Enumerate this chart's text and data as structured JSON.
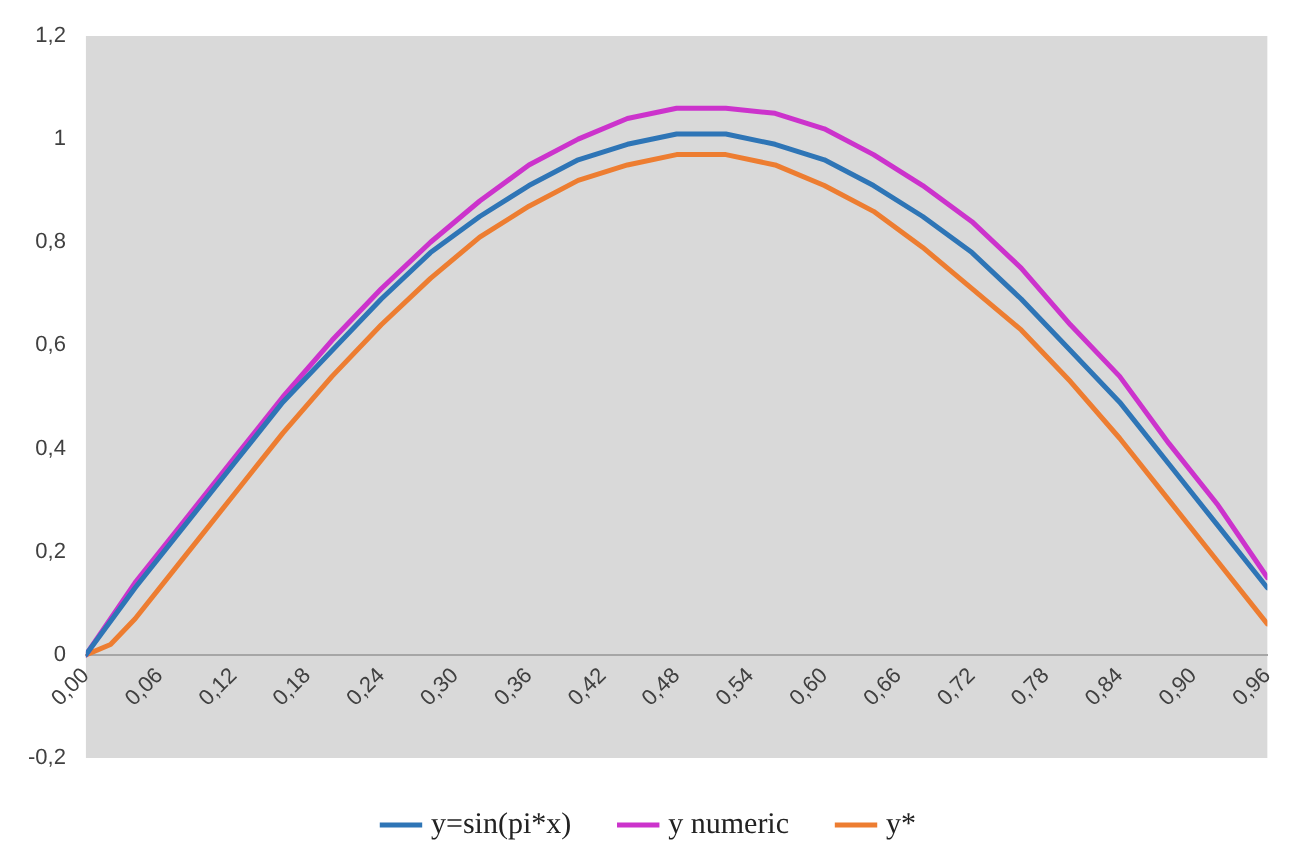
{
  "chart_data": {
    "type": "line",
    "x": [
      0,
      0.04,
      0.08,
      0.12,
      0.16,
      0.2,
      0.24,
      0.28,
      0.32,
      0.36,
      0.4,
      0.44,
      0.48,
      0.52,
      0.56,
      0.6,
      0.64,
      0.68,
      0.72,
      0.76,
      0.8,
      0.84,
      0.88,
      0.92,
      0.96
    ],
    "xlim": [
      0,
      0.96
    ],
    "xticks": [
      {
        "value": 0,
        "label": "0,00"
      },
      {
        "value": 0.06,
        "label": "0,06"
      },
      {
        "value": 0.12,
        "label": "0,12"
      },
      {
        "value": 0.18,
        "label": "0,18"
      },
      {
        "value": 0.24,
        "label": "0,24"
      },
      {
        "value": 0.3,
        "label": "0,30"
      },
      {
        "value": 0.36,
        "label": "0,36"
      },
      {
        "value": 0.42,
        "label": "0,42"
      },
      {
        "value": 0.48,
        "label": "0,48"
      },
      {
        "value": 0.54,
        "label": "0,54"
      },
      {
        "value": 0.6,
        "label": "0,60"
      },
      {
        "value": 0.66,
        "label": "0,66"
      },
      {
        "value": 0.72,
        "label": "0,72"
      },
      {
        "value": 0.78,
        "label": "0,78"
      },
      {
        "value": 0.84,
        "label": "0,84"
      },
      {
        "value": 0.9,
        "label": "0,90"
      },
      {
        "value": 0.96,
        "label": "0,96"
      }
    ],
    "ylim": [
      -0.2,
      1.2
    ],
    "yticks": [
      {
        "value": -0.2,
        "label": "-0,2"
      },
      0,
      {
        "value": 0.2,
        "label": "0,2"
      },
      {
        "value": 0.4,
        "label": "0,4"
      },
      {
        "value": 0.6,
        "label": "0,6"
      },
      {
        "value": 0.8,
        "label": "0,8"
      },
      1,
      {
        "value": 1.2,
        "label": "1,2"
      }
    ],
    "grid": false,
    "legend": "bottom",
    "marker": "none",
    "line_style": "solid",
    "series": [
      {
        "name": "y=sin(pi*x)",
        "color": "#2e75b6",
        "values": [
          0,
          0.13,
          0.25,
          0.37,
          0.49,
          0.59,
          0.69,
          0.78,
          0.85,
          0.91,
          0.96,
          0.99,
          1.01,
          1.01,
          0.99,
          0.96,
          0.91,
          0.85,
          0.78,
          0.69,
          0.59,
          0.49,
          0.37,
          0.25,
          0.13
        ]
      },
      {
        "name": "y numeric",
        "color": "#cc33cc",
        "values": [
          0,
          0.14,
          0.26,
          0.38,
          0.5,
          0.61,
          0.71,
          0.8,
          0.88,
          0.95,
          1.0,
          1.04,
          1.06,
          1.06,
          1.05,
          1.02,
          0.97,
          0.91,
          0.84,
          0.75,
          0.64,
          0.54,
          0.41,
          0.29,
          0.15
        ]
      },
      {
        "name": "y*",
        "color": "#ed7d31",
        "x": [
          0,
          0.02,
          0.04,
          0.08,
          0.12,
          0.16,
          0.2,
          0.24,
          0.28,
          0.32,
          0.36,
          0.4,
          0.44,
          0.48,
          0.52,
          0.56,
          0.6,
          0.64,
          0.68,
          0.72,
          0.76,
          0.8,
          0.84,
          0.88,
          0.92,
          0.96
        ],
        "values": [
          0,
          0.02,
          0.07,
          0.19,
          0.31,
          0.43,
          0.54,
          0.64,
          0.73,
          0.81,
          0.87,
          0.92,
          0.95,
          0.97,
          0.97,
          0.95,
          0.91,
          0.86,
          0.79,
          0.71,
          0.63,
          0.53,
          0.42,
          0.3,
          0.18,
          0.06
        ]
      }
    ]
  }
}
